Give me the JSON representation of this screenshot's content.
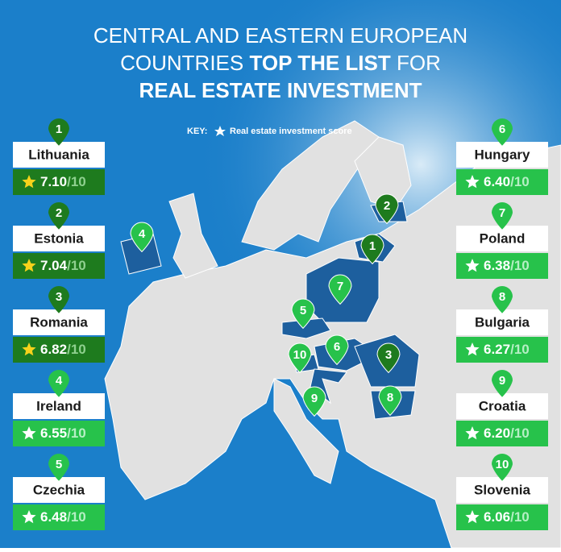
{
  "title": {
    "lines": [
      [
        {
          "text": "CENTRAL AND EASTERN EUROPEAN",
          "bold": false
        }
      ],
      [
        {
          "text": "COUNTRIES ",
          "bold": false
        },
        {
          "text": "TOP THE LIST",
          "bold": true
        },
        {
          "text": " FOR",
          "bold": false
        }
      ],
      [
        {
          "text": "REAL ESTATE INVESTMENT",
          "bold": true
        }
      ]
    ]
  },
  "key": {
    "label": "KEY:",
    "text": "Real estate investment score"
  },
  "entries": [
    {
      "rank": "1",
      "country": "Lithuania",
      "score": "7.10",
      "scale": "/10",
      "color": "#1e7b1e"
    },
    {
      "rank": "2",
      "country": "Estonia",
      "score": "7.04",
      "scale": "/10",
      "color": "#1e7b1e"
    },
    {
      "rank": "3",
      "country": "Romania",
      "score": "6.82",
      "scale": "/10",
      "color": "#1e7b1e"
    },
    {
      "rank": "4",
      "country": "Ireland",
      "score": "6.55",
      "scale": "/10",
      "color": "#27c24b"
    },
    {
      "rank": "5",
      "country": "Czechia",
      "score": "6.48",
      "scale": "/10",
      "color": "#27c24b"
    },
    {
      "rank": "6",
      "country": "Hungary",
      "score": "6.40",
      "scale": "/10",
      "color": "#27c24b"
    },
    {
      "rank": "7",
      "country": "Poland",
      "score": "6.38",
      "scale": "/10",
      "color": "#27c24b"
    },
    {
      "rank": "8",
      "country": "Bulgaria",
      "score": "6.27",
      "scale": "/10",
      "color": "#27c24b"
    },
    {
      "rank": "9",
      "country": "Croatia",
      "score": "6.20",
      "scale": "/10",
      "color": "#27c24b"
    },
    {
      "rank": "10",
      "country": "Slovenia",
      "score": "6.06",
      "scale": "/10",
      "color": "#27c24b"
    }
  ]
}
